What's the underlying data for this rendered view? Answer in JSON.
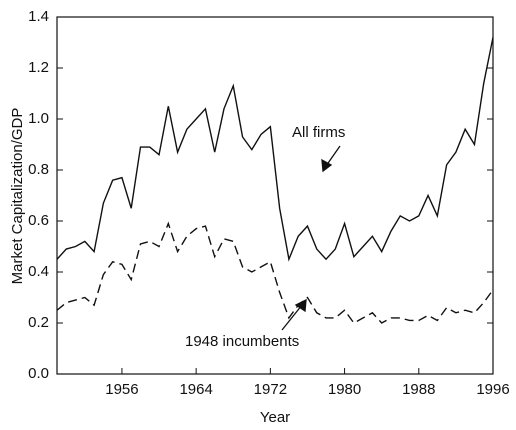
{
  "chart_data": {
    "type": "line",
    "x_label": "Year",
    "y_label": "Market Capitalization/GDP",
    "x": [
      1949,
      1950,
      1951,
      1952,
      1953,
      1954,
      1955,
      1956,
      1957,
      1958,
      1959,
      1960,
      1961,
      1962,
      1963,
      1964,
      1965,
      1966,
      1967,
      1968,
      1969,
      1970,
      1971,
      1972,
      1973,
      1974,
      1975,
      1976,
      1977,
      1978,
      1979,
      1980,
      1981,
      1982,
      1983,
      1984,
      1985,
      1986,
      1987,
      1988,
      1989,
      1990,
      1991,
      1992,
      1993,
      1994,
      1995,
      1996
    ],
    "series": [
      {
        "name": "All firms",
        "color": "#111111",
        "dash": false,
        "values": [
          0.45,
          0.49,
          0.5,
          0.52,
          0.48,
          0.67,
          0.76,
          0.77,
          0.65,
          0.89,
          0.89,
          0.86,
          1.05,
          0.87,
          0.96,
          1.0,
          1.04,
          0.87,
          1.04,
          1.13,
          0.93,
          0.88,
          0.94,
          0.97,
          0.65,
          0.45,
          0.54,
          0.58,
          0.49,
          0.45,
          0.49,
          0.59,
          0.46,
          0.5,
          0.54,
          0.48,
          0.56,
          0.62,
          0.6,
          0.62,
          0.7,
          0.62,
          0.82,
          0.87,
          0.96,
          0.9,
          1.14,
          1.32
        ]
      },
      {
        "name": "1948 incumbents",
        "color": "#111111",
        "dash": true,
        "values": [
          0.25,
          0.28,
          0.29,
          0.3,
          0.27,
          0.39,
          0.44,
          0.43,
          0.37,
          0.51,
          0.52,
          0.5,
          0.59,
          0.48,
          0.54,
          0.57,
          0.58,
          0.46,
          0.53,
          0.52,
          0.42,
          0.4,
          0.42,
          0.44,
          0.32,
          0.22,
          0.27,
          0.3,
          0.24,
          0.22,
          0.22,
          0.25,
          0.2,
          0.22,
          0.24,
          0.2,
          0.22,
          0.22,
          0.21,
          0.21,
          0.23,
          0.21,
          0.26,
          0.24,
          0.25,
          0.24,
          0.28,
          0.33
        ]
      }
    ],
    "annotations": [
      "All firms",
      "1948 incumbents"
    ],
    "xlim": [
      1949,
      1996
    ],
    "xticks": [
      1956,
      1964,
      1972,
      1980,
      1988,
      1996
    ],
    "ylim": [
      0,
      1.4
    ],
    "yticks": [
      {
        "value": 0,
        "label": "0.0"
      },
      0.2,
      0.4,
      0.6,
      0.8,
      {
        "value": 1,
        "label": "1.0"
      },
      1.2,
      1.4
    ],
    "grid": false
  }
}
